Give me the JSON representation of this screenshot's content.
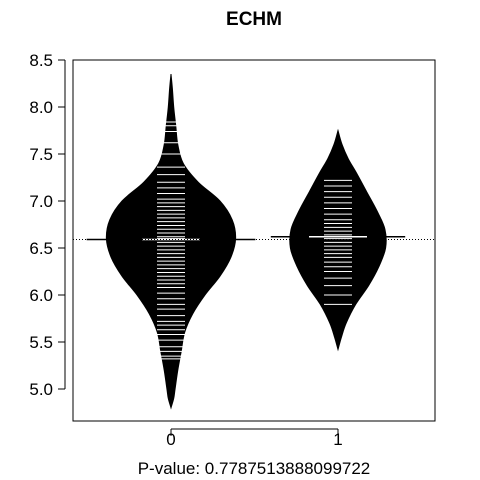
{
  "chart_data": {
    "type": "beanplot",
    "title": "ECHM",
    "xlabel": "P-value: 0.7787513888099722",
    "ylabel": "",
    "categories": [
      "0",
      "1"
    ],
    "ylim": [
      4.7,
      8.5
    ],
    "yticks": [
      5.0,
      5.5,
      6.0,
      6.5,
      7.0,
      7.5,
      8.0,
      8.5
    ],
    "ytick_labels": [
      "5.0",
      "5.5",
      "6.0",
      "6.5",
      "7.0",
      "7.5",
      "8.0",
      "8.5"
    ],
    "overall_mean": 6.59,
    "beans": [
      {
        "category": "0",
        "mean": 6.59,
        "density": [
          [
            4.8,
            0.0
          ],
          [
            4.9,
            0.04
          ],
          [
            5.0,
            0.06
          ],
          [
            5.2,
            0.1
          ],
          [
            5.4,
            0.15
          ],
          [
            5.6,
            0.2
          ],
          [
            5.8,
            0.32
          ],
          [
            6.0,
            0.5
          ],
          [
            6.2,
            0.72
          ],
          [
            6.4,
            0.88
          ],
          [
            6.6,
            0.95
          ],
          [
            6.8,
            0.9
          ],
          [
            7.0,
            0.72
          ],
          [
            7.2,
            0.4
          ],
          [
            7.4,
            0.18
          ],
          [
            7.6,
            0.1
          ],
          [
            7.8,
            0.07
          ],
          [
            8.0,
            0.04
          ],
          [
            8.2,
            0.02
          ],
          [
            8.35,
            0.0
          ]
        ],
        "points": [
          5.32,
          5.35,
          5.4,
          5.45,
          5.52,
          5.58,
          5.63,
          5.68,
          5.72,
          5.78,
          5.85,
          5.9,
          5.96,
          6.02,
          6.08,
          6.12,
          6.16,
          6.2,
          6.24,
          6.28,
          6.32,
          6.36,
          6.4,
          6.44,
          6.48,
          6.52,
          6.56,
          6.6,
          6.62,
          6.66,
          6.7,
          6.74,
          6.78,
          6.82,
          6.86,
          6.9,
          6.94,
          6.98,
          7.02,
          7.08,
          7.14,
          7.2,
          7.28,
          7.36,
          7.5,
          7.62,
          7.74,
          7.8,
          7.84
        ]
      },
      {
        "category": "1",
        "mean": 6.62,
        "density": [
          [
            5.42,
            0.0
          ],
          [
            5.55,
            0.05
          ],
          [
            5.7,
            0.12
          ],
          [
            5.9,
            0.26
          ],
          [
            6.1,
            0.45
          ],
          [
            6.3,
            0.6
          ],
          [
            6.5,
            0.7
          ],
          [
            6.7,
            0.69
          ],
          [
            6.9,
            0.57
          ],
          [
            7.1,
            0.42
          ],
          [
            7.3,
            0.27
          ],
          [
            7.45,
            0.15
          ],
          [
            7.6,
            0.06
          ],
          [
            7.75,
            0.0
          ]
        ],
        "points": [
          5.9,
          6.0,
          6.1,
          6.18,
          6.25,
          6.3,
          6.35,
          6.4,
          6.44,
          6.48,
          6.52,
          6.56,
          6.6,
          6.64,
          6.68,
          6.72,
          6.76,
          6.8,
          6.86,
          6.92,
          6.98,
          7.04,
          7.1,
          7.16,
          7.22
        ]
      }
    ],
    "colors": {
      "bean_fill": "#000000",
      "bean_lines": "#ffffff",
      "axes": "#000000",
      "background": "#ffffff"
    }
  }
}
